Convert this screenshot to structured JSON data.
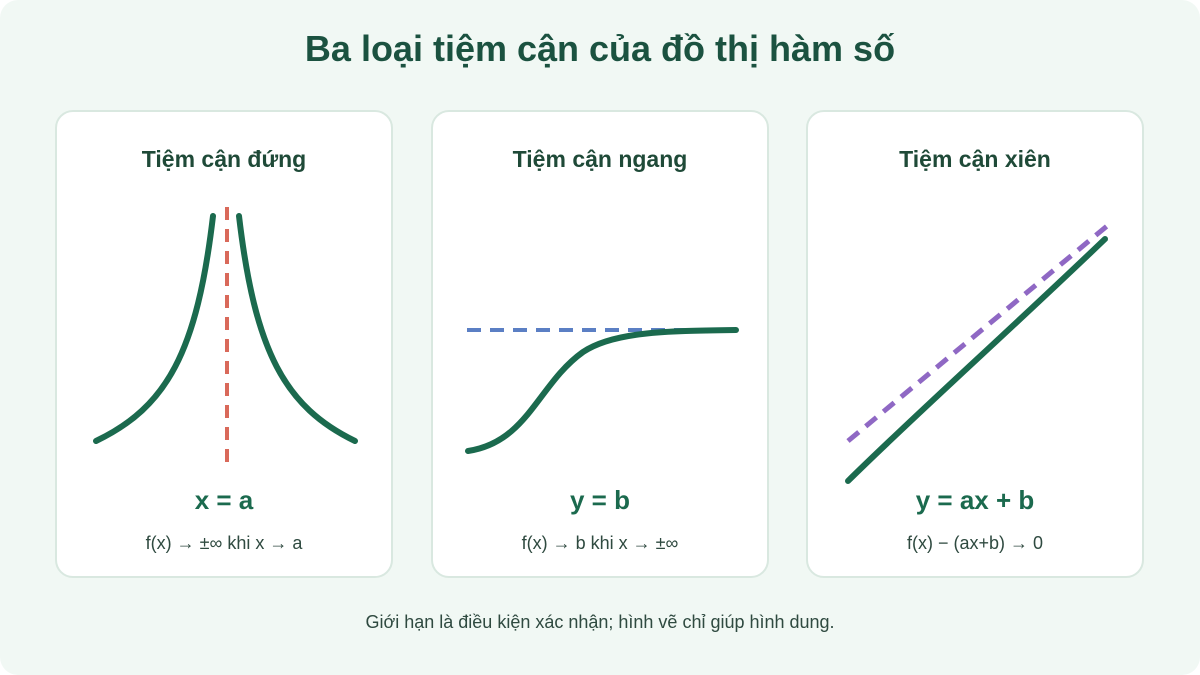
{
  "page": {
    "title": "Ba loại tiệm cận của đồ thị hàm số",
    "footer": "Giới hạn là điều kiện xác nhận; hình vẽ chỉ giúp hình dung."
  },
  "colors": {
    "background": "#f1f8f4",
    "curve": "#1b6a4e",
    "vertical_asymptote": "#d9695a",
    "horizontal_asymptote": "#5b7fc4",
    "oblique_asymptote": "#8f68c4"
  },
  "cards": [
    {
      "title": "Tiệm cận đứng",
      "equation": "x = a",
      "condition": "f(x) → ±∞ khi x → a"
    },
    {
      "title": "Tiệm cận ngang",
      "equation": "y = b",
      "condition": "f(x) → b khi x → ±∞"
    },
    {
      "title": "Tiệm cận xiên",
      "equation": "y = ax + b",
      "condition": "f(x) − (ax+b) → 0"
    }
  ]
}
